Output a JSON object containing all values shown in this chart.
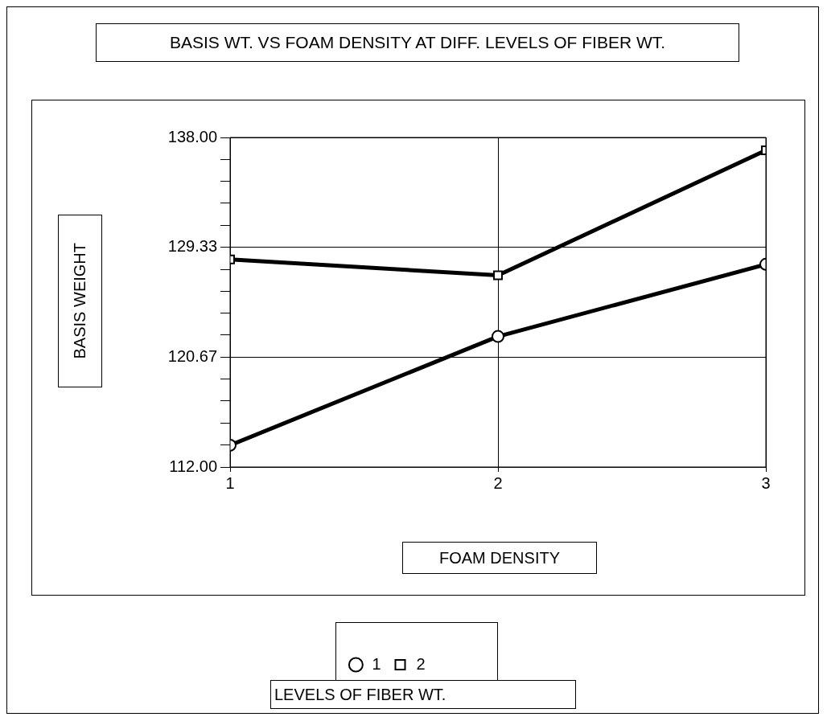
{
  "chart_data": {
    "type": "line",
    "title": "BASIS WT. VS FOAM DENSITY AT DIFF. LEVELS OF FIBER WT.",
    "xlabel": "FOAM DENSITY",
    "ylabel": "BASIS WEIGHT",
    "legend_title": "LEVELS OF FIBER WT.",
    "x": [
      1,
      2,
      3
    ],
    "series": [
      {
        "name": "1",
        "color": "#000000",
        "marker": "circle",
        "values": [
          113.72,
          122.3,
          127.99
        ]
      },
      {
        "name": "2",
        "color": "#000000",
        "marker": "square",
        "values": [
          128.38,
          127.12,
          136.99
        ]
      }
    ],
    "xlim": [
      1,
      3
    ],
    "xticks": [
      1,
      2,
      3
    ],
    "ylim": [
      112,
      138
    ],
    "yticks": [
      {
        "value": 112,
        "label": "112.00"
      },
      {
        "value": 113.73,
        "label": null
      },
      {
        "value": 115.47,
        "label": null
      },
      {
        "value": 117.2,
        "label": null
      },
      {
        "value": 118.93,
        "label": null
      },
      {
        "value": 120.67,
        "label": "120.67"
      },
      {
        "value": 122.4,
        "label": null
      },
      {
        "value": 124.13,
        "label": null
      },
      {
        "value": 125.87,
        "label": null
      },
      {
        "value": 127.6,
        "label": null
      },
      {
        "value": 129.33,
        "label": "129.33"
      },
      {
        "value": 131.07,
        "label": null
      },
      {
        "value": 132.8,
        "label": null
      },
      {
        "value": 134.53,
        "label": null
      },
      {
        "value": 136.27,
        "label": null
      },
      {
        "value": 138,
        "label": "138.00"
      }
    ],
    "grid": true,
    "legend": "bottom",
    "line_style": "solid"
  }
}
